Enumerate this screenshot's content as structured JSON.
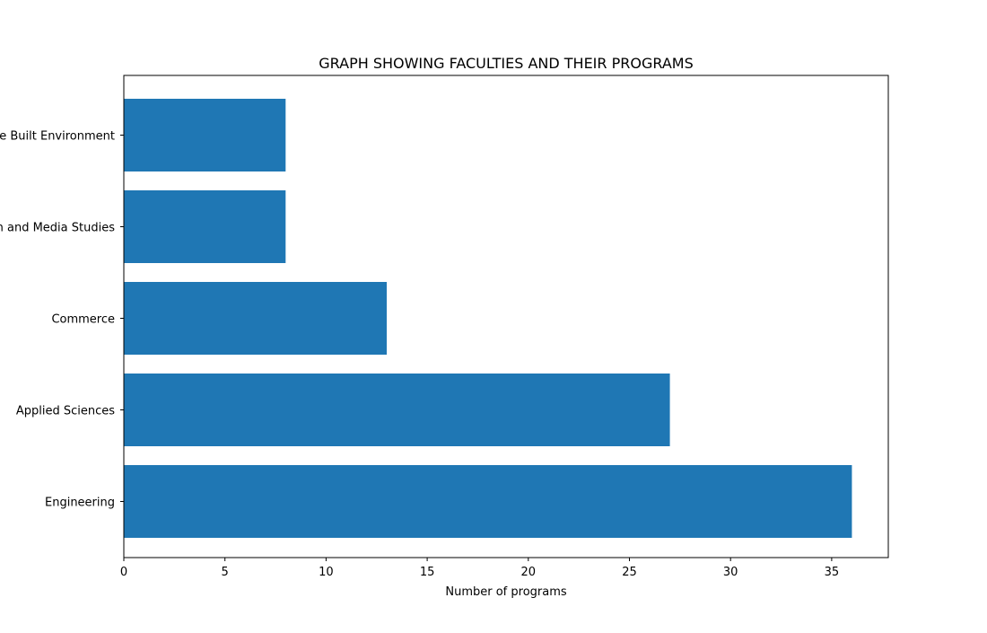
{
  "chart_data": {
    "type": "bar",
    "orientation": "horizontal",
    "title": "GRAPH SHOWING FACULTIES AND THEIR PROGRAMS",
    "xlabel": "Number of programs",
    "ylabel": "",
    "categories": [
      "Engineering",
      "Applied Sciences",
      "Commerce",
      "Communication and Media Studies",
      "The Built Environment"
    ],
    "values": [
      36,
      27,
      13,
      8,
      8
    ],
    "xlim": [
      0,
      37.8
    ],
    "xticks": [
      0,
      5,
      10,
      15,
      20,
      25,
      30,
      35
    ],
    "grid": false,
    "legend": false,
    "bar_color": "#1f77b4"
  }
}
